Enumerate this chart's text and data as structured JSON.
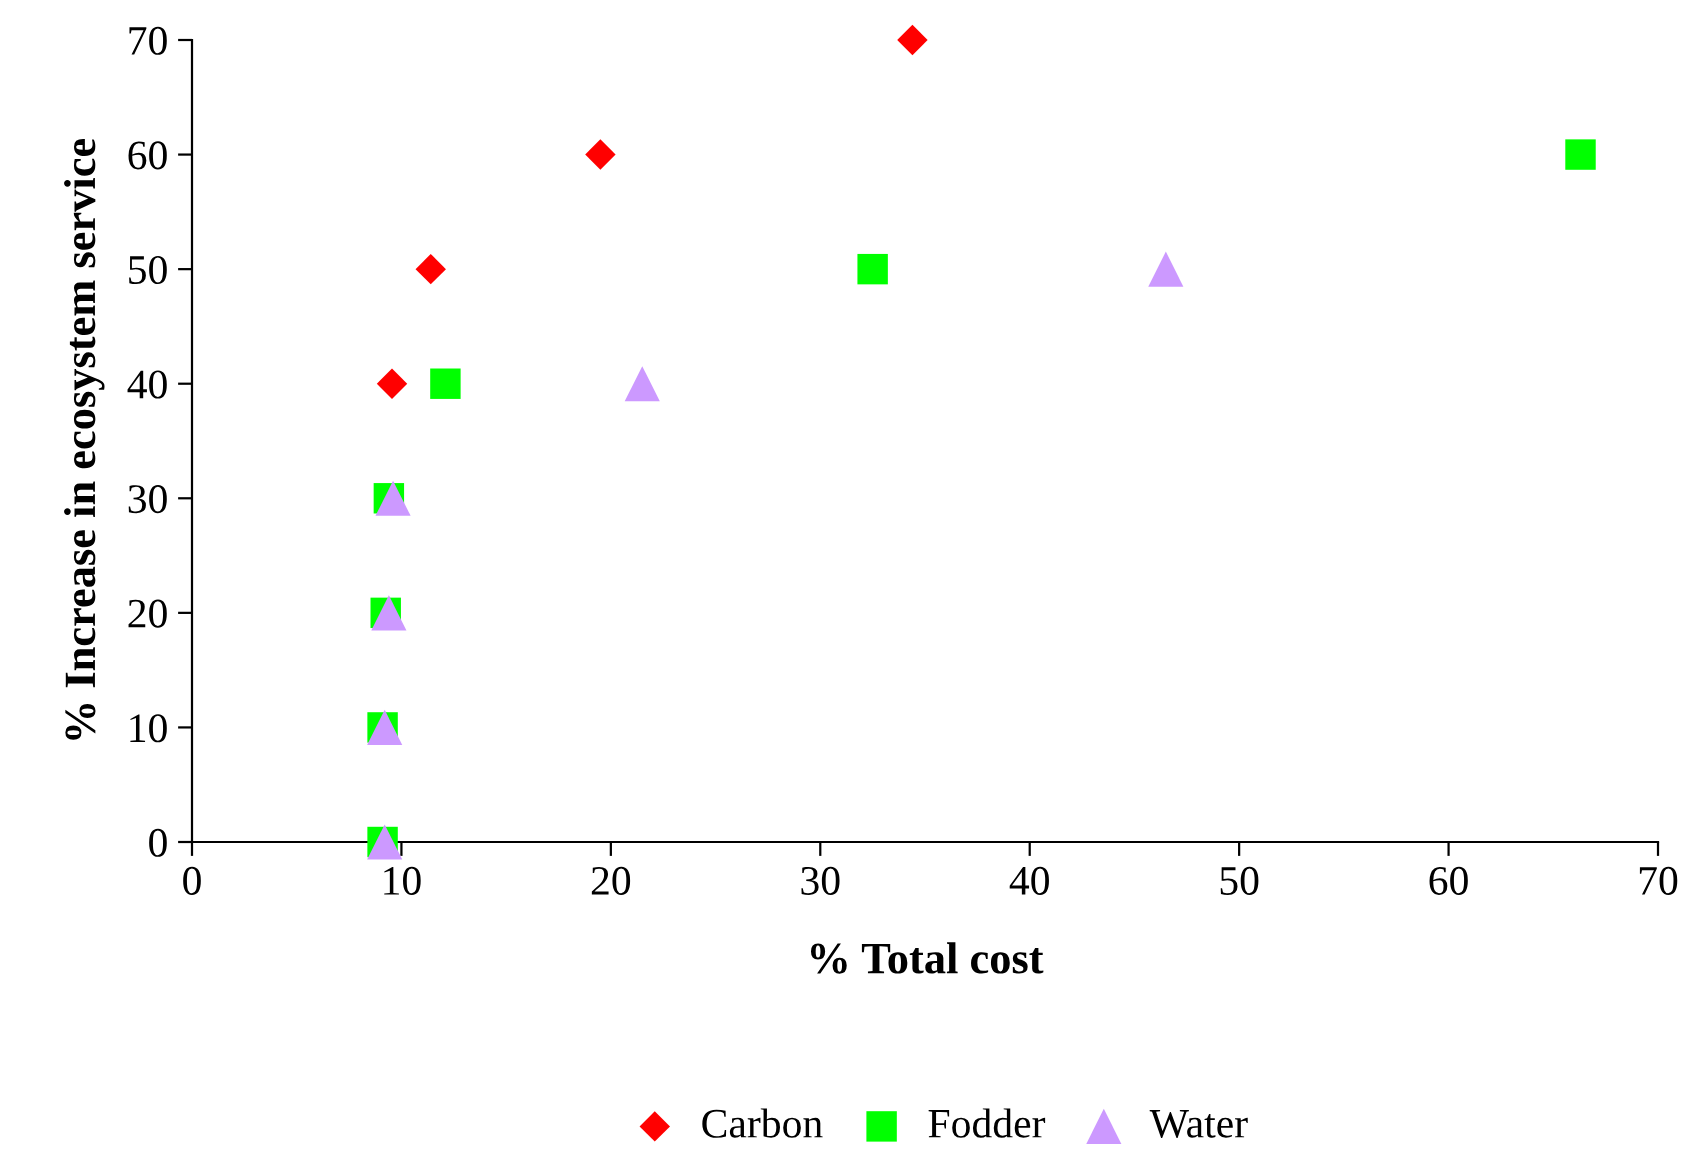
{
  "chart_data": {
    "type": "scatter",
    "xlabel": "% Total cost",
    "ylabel": "% Increase in ecosystem service",
    "xlim": [
      0,
      70
    ],
    "ylim": [
      0,
      70
    ],
    "xticks": [
      0,
      10,
      20,
      30,
      40,
      50,
      60,
      70
    ],
    "yticks": [
      0,
      10,
      20,
      30,
      40,
      50,
      60,
      70
    ],
    "grid": false,
    "legend": "bottom",
    "series": [
      {
        "name": "Carbon",
        "color": "#ff0000",
        "marker": "diamond",
        "x": [
          9.55,
          11.4,
          19.5,
          34.4
        ],
        "values": [
          40,
          50,
          60,
          70
        ]
      },
      {
        "name": "Fodder",
        "color": "#00ff00",
        "marker": "square",
        "x": [
          9.1,
          9.1,
          9.25,
          9.4,
          12.1,
          32.5,
          66.3
        ],
        "values": [
          0,
          10,
          20,
          30,
          40,
          50,
          60
        ]
      },
      {
        "name": "Water",
        "color": "#cc99ff",
        "marker": "triangle",
        "x": [
          9.2,
          9.2,
          9.4,
          9.6,
          21.5,
          46.5
        ],
        "values": [
          0,
          10,
          20,
          30,
          40,
          50
        ]
      }
    ]
  }
}
